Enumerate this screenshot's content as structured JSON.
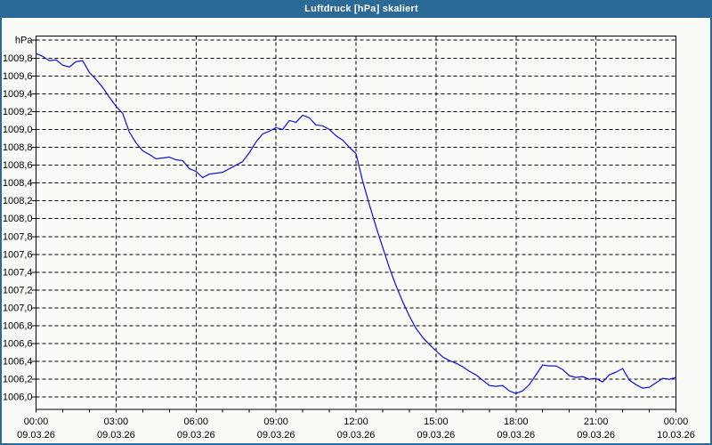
{
  "window": {
    "title": "Luftdruck [hPa] skaliert"
  },
  "colors": {
    "titlebar": "#2b6996",
    "titlebar_text": "#ffffff",
    "window_border": "#2b6996",
    "background": "#fafaf6",
    "plot_background": "#fafaf6",
    "grid": "#000000",
    "axis": "#000000",
    "tick_label": "#000000",
    "line": "#1414dc"
  },
  "chart_data": {
    "type": "line",
    "title": "Luftdruck [hPa] skaliert",
    "ylabel": "hPa",
    "xlabel": "",
    "ylim": [
      1006.0,
      1010.0
    ],
    "y_tick_step": 0.2,
    "y_tick_labels": [
      "hPa",
      "1009,8",
      "1009,6",
      "1009,4",
      "1009,2",
      "1009,0",
      "1008,8",
      "1008,6",
      "1008,4",
      "1008,2",
      "1008,0",
      "1007,8",
      "1007,6",
      "1007,4",
      "1007,2",
      "1007,0",
      "1006,8",
      "1006,6",
      "1006,4",
      "1006,2",
      "1006,0"
    ],
    "xlim_hours": [
      0,
      24
    ],
    "x_major_tick_hours": 3,
    "x_minor_tick_hours": 1,
    "grid": "dashed",
    "legend": "none",
    "x_ticks": [
      {
        "time": "00:00",
        "date": "09.03.26"
      },
      {
        "time": "03:00",
        "date": "09.03.26"
      },
      {
        "time": "06:00",
        "date": "09.03.26"
      },
      {
        "time": "09:00",
        "date": "09.03.26"
      },
      {
        "time": "12:00",
        "date": "09.03.26"
      },
      {
        "time": "15:00",
        "date": "09.03.26"
      },
      {
        "time": "18:00",
        "date": "09.03.26"
      },
      {
        "time": "21:00",
        "date": "09.03.26"
      },
      {
        "time": "00:00",
        "date": "10.03.26"
      }
    ],
    "series_name": "Luftdruck",
    "unit": "hPa",
    "x_start_hour": 0,
    "x_step_hours": 0.25,
    "x_hours": [
      0,
      0.25,
      0.5,
      0.75,
      1,
      1.25,
      1.5,
      1.75,
      2,
      2.25,
      2.5,
      2.75,
      3,
      3.25,
      3.5,
      3.75,
      4,
      4.25,
      4.5,
      4.75,
      5,
      5.25,
      5.5,
      5.75,
      6,
      6.25,
      6.5,
      6.75,
      7,
      7.25,
      7.5,
      7.75,
      8,
      8.25,
      8.5,
      8.75,
      9,
      9.25,
      9.5,
      9.75,
      10,
      10.25,
      10.5,
      10.75,
      11,
      11.25,
      11.5,
      11.75,
      12,
      12.25,
      12.5,
      12.75,
      13,
      13.25,
      13.5,
      13.75,
      14,
      14.25,
      14.5,
      14.75,
      15,
      15.25,
      15.5,
      15.75,
      16,
      16.25,
      16.5,
      16.75,
      17,
      17.25,
      17.5,
      17.75,
      18,
      18.25,
      18.5,
      18.75,
      19,
      19.25,
      19.5,
      19.75,
      20,
      20.25,
      20.5,
      20.75,
      21,
      21.25,
      21.5,
      21.75,
      22,
      22.25,
      22.5,
      22.75,
      23,
      23.25,
      23.5,
      23.75,
      24
    ],
    "values": [
      1009.85,
      1009.82,
      1009.77,
      1009.78,
      1009.72,
      1009.7,
      1009.76,
      1009.77,
      1009.64,
      1009.56,
      1009.47,
      1009.36,
      1009.26,
      1009.18,
      1008.97,
      1008.85,
      1008.76,
      1008.72,
      1008.67,
      1008.68,
      1008.69,
      1008.66,
      1008.65,
      1008.56,
      1008.53,
      1008.46,
      1008.5,
      1008.51,
      1008.52,
      1008.56,
      1008.6,
      1008.64,
      1008.74,
      1008.86,
      1008.95,
      1008.98,
      1009.02,
      1009.0,
      1009.1,
      1009.08,
      1009.16,
      1009.13,
      1009.05,
      1009.04,
      1009.0,
      1008.93,
      1008.88,
      1008.8,
      1008.73,
      1008.42,
      1008.16,
      1007.91,
      1007.68,
      1007.45,
      1007.25,
      1007.07,
      1006.91,
      1006.77,
      1006.67,
      1006.59,
      1006.52,
      1006.45,
      1006.41,
      1006.38,
      1006.34,
      1006.29,
      1006.25,
      1006.19,
      1006.13,
      1006.12,
      1006.13,
      1006.07,
      1006.04,
      1006.07,
      1006.14,
      1006.25,
      1006.36,
      1006.35,
      1006.35,
      1006.31,
      1006.24,
      1006.22,
      1006.23,
      1006.2,
      1006.21,
      1006.17,
      1006.25,
      1006.28,
      1006.32,
      1006.19,
      1006.14,
      1006.1,
      1006.11,
      1006.16,
      1006.21,
      1006.2,
      1006.22
    ]
  }
}
